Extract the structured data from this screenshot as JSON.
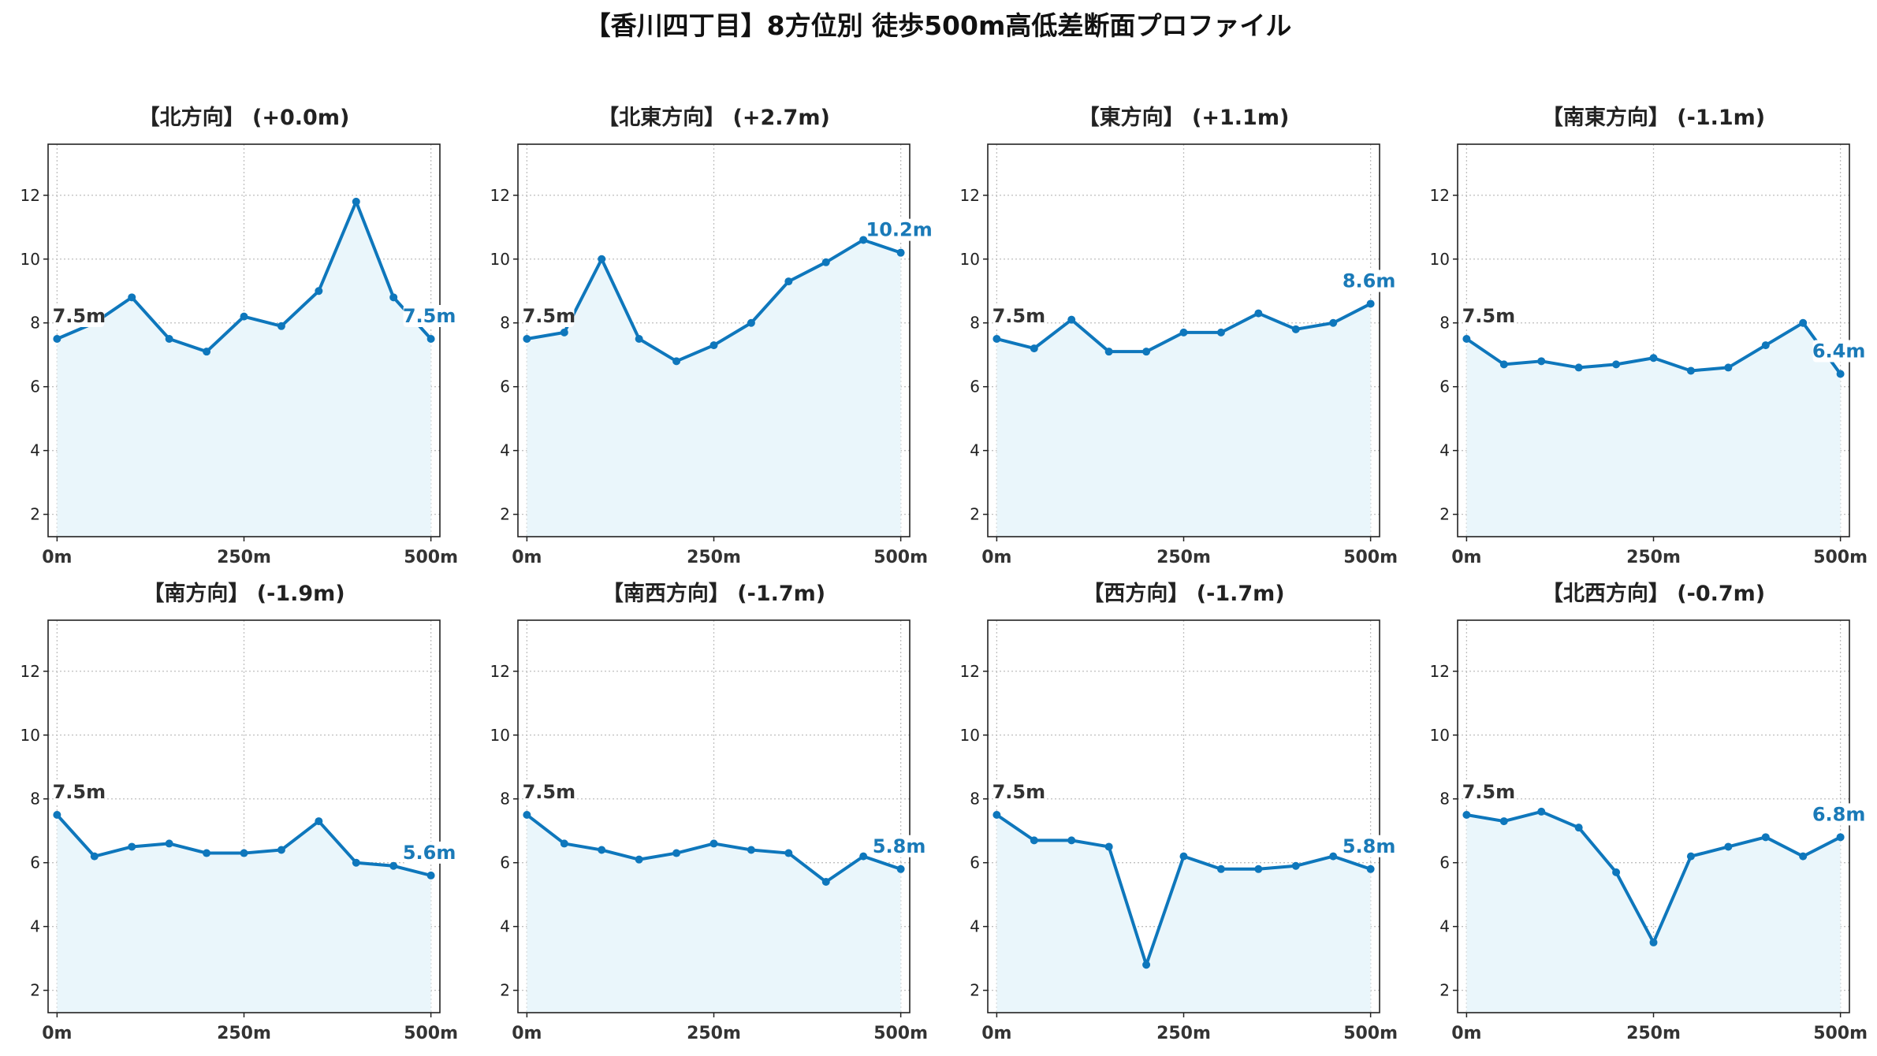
{
  "title": "【香川四丁目】8方位別 徒歩500m高低差断面プロファイル",
  "colors": {
    "line": "#0e77bc",
    "fill": "#eaf6fb",
    "grid": "#bfbfbf",
    "axis": "#222222",
    "end_label": "#1a7ab8"
  },
  "chart_data": [
    {
      "type": "area",
      "title": "【北方向】 (+0.0m)",
      "x": [
        0,
        50,
        100,
        150,
        200,
        250,
        300,
        350,
        400,
        450,
        500
      ],
      "values": [
        7.5,
        8.0,
        8.8,
        7.5,
        7.1,
        8.2,
        7.9,
        9.0,
        11.8,
        8.8,
        7.5
      ],
      "start_label": "7.5m",
      "end_label": "7.5m",
      "xticks": [
        "0m",
        "250m",
        "500m"
      ],
      "yticks": [
        "2",
        "4",
        "6",
        "8",
        "10",
        "12"
      ],
      "ylim": [
        1.3,
        13.6
      ],
      "xlim": [
        -12,
        512
      ],
      "grid": true
    },
    {
      "type": "area",
      "title": "【北東方向】 (+2.7m)",
      "x": [
        0,
        50,
        100,
        150,
        200,
        250,
        300,
        350,
        400,
        450,
        500
      ],
      "values": [
        7.5,
        7.7,
        10.0,
        7.5,
        6.8,
        7.3,
        8.0,
        9.3,
        9.9,
        10.6,
        10.2
      ],
      "start_label": "7.5m",
      "end_label": "10.2m",
      "xticks": [
        "0m",
        "250m",
        "500m"
      ],
      "yticks": [
        "2",
        "4",
        "6",
        "8",
        "10",
        "12"
      ],
      "ylim": [
        1.3,
        13.6
      ],
      "xlim": [
        -12,
        512
      ],
      "grid": true
    },
    {
      "type": "area",
      "title": "【東方向】 (+1.1m)",
      "x": [
        0,
        50,
        100,
        150,
        200,
        250,
        300,
        350,
        400,
        450,
        500
      ],
      "values": [
        7.5,
        7.2,
        8.1,
        7.1,
        7.1,
        7.7,
        7.7,
        8.3,
        7.8,
        8.0,
        8.6
      ],
      "start_label": "7.5m",
      "end_label": "8.6m",
      "xticks": [
        "0m",
        "250m",
        "500m"
      ],
      "yticks": [
        "2",
        "4",
        "6",
        "8",
        "10",
        "12"
      ],
      "ylim": [
        1.3,
        13.6
      ],
      "xlim": [
        -12,
        512
      ],
      "grid": true
    },
    {
      "type": "area",
      "title": "【南東方向】 (-1.1m)",
      "x": [
        0,
        50,
        100,
        150,
        200,
        250,
        300,
        350,
        400,
        450,
        500
      ],
      "values": [
        7.5,
        6.7,
        6.8,
        6.6,
        6.7,
        6.9,
        6.5,
        6.6,
        7.3,
        8.0,
        6.4
      ],
      "start_label": "7.5m",
      "end_label": "6.4m",
      "xticks": [
        "0m",
        "250m",
        "500m"
      ],
      "yticks": [
        "2",
        "4",
        "6",
        "8",
        "10",
        "12"
      ],
      "ylim": [
        1.3,
        13.6
      ],
      "xlim": [
        -12,
        512
      ],
      "grid": true
    },
    {
      "type": "area",
      "title": "【南方向】 (-1.9m)",
      "x": [
        0,
        50,
        100,
        150,
        200,
        250,
        300,
        350,
        400,
        450,
        500
      ],
      "values": [
        7.5,
        6.2,
        6.5,
        6.6,
        6.3,
        6.3,
        6.4,
        7.3,
        6.0,
        5.9,
        5.6
      ],
      "start_label": "7.5m",
      "end_label": "5.6m",
      "xticks": [
        "0m",
        "250m",
        "500m"
      ],
      "yticks": [
        "2",
        "4",
        "6",
        "8",
        "10",
        "12"
      ],
      "ylim": [
        1.3,
        13.6
      ],
      "xlim": [
        -12,
        512
      ],
      "grid": true
    },
    {
      "type": "area",
      "title": "【南西方向】 (-1.7m)",
      "x": [
        0,
        50,
        100,
        150,
        200,
        250,
        300,
        350,
        400,
        450,
        500
      ],
      "values": [
        7.5,
        6.6,
        6.4,
        6.1,
        6.3,
        6.6,
        6.4,
        6.3,
        5.4,
        6.2,
        5.8
      ],
      "start_label": "7.5m",
      "end_label": "5.8m",
      "xticks": [
        "0m",
        "250m",
        "500m"
      ],
      "yticks": [
        "2",
        "4",
        "6",
        "8",
        "10",
        "12"
      ],
      "ylim": [
        1.3,
        13.6
      ],
      "xlim": [
        -12,
        512
      ],
      "grid": true
    },
    {
      "type": "area",
      "title": "【西方向】 (-1.7m)",
      "x": [
        0,
        50,
        100,
        150,
        200,
        250,
        300,
        350,
        400,
        450,
        500
      ],
      "values": [
        7.5,
        6.7,
        6.7,
        6.5,
        2.8,
        6.2,
        5.8,
        5.8,
        5.9,
        6.2,
        5.8
      ],
      "start_label": "7.5m",
      "end_label": "5.8m",
      "xticks": [
        "0m",
        "250m",
        "500m"
      ],
      "yticks": [
        "2",
        "4",
        "6",
        "8",
        "10",
        "12"
      ],
      "ylim": [
        1.3,
        13.6
      ],
      "xlim": [
        -12,
        512
      ],
      "grid": true
    },
    {
      "type": "area",
      "title": "【北西方向】 (-0.7m)",
      "x": [
        0,
        50,
        100,
        150,
        200,
        250,
        300,
        350,
        400,
        450,
        500
      ],
      "values": [
        7.5,
        7.3,
        7.6,
        7.1,
        5.7,
        3.5,
        6.2,
        6.5,
        6.8,
        6.2,
        6.8
      ],
      "start_label": "7.5m",
      "end_label": "6.8m",
      "xticks": [
        "0m",
        "250m",
        "500m"
      ],
      "yticks": [
        "2",
        "4",
        "6",
        "8",
        "10",
        "12"
      ],
      "ylim": [
        1.3,
        13.6
      ],
      "xlim": [
        -12,
        512
      ],
      "grid": true
    }
  ]
}
